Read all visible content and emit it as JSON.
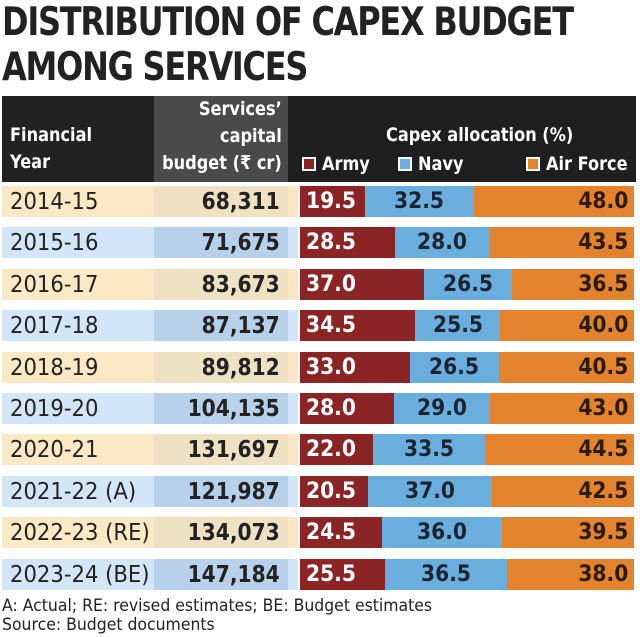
{
  "title_line1": "DISTRIBUTION OF CAPEX BUDGET",
  "title_line2": "AMONG SERVICES",
  "header": {
    "col_year_line1": "Financial",
    "col_year_line2": "Year",
    "col_budget_line1": "Services’",
    "col_budget_line2": "capital",
    "col_budget_line3": "budget (₹ cr)",
    "col_alloc": "Capex allocation (%)"
  },
  "legend": [
    {
      "name": "Army",
      "color": "#8b2424"
    },
    {
      "name": "Navy",
      "color": "#6aaedd"
    },
    {
      "name": "Air Force",
      "color": "#e4832e"
    }
  ],
  "chart_data": {
    "type": "bar",
    "stacked": true,
    "orientation": "horizontal",
    "title": "DISTRIBUTION OF CAPEX BUDGET AMONG SERVICES",
    "xlabel": "Capex allocation (%)",
    "ylabel": "Financial Year",
    "xlim": [
      0,
      100
    ],
    "legend_position": "top",
    "categories": [
      "2014-15",
      "2015-16",
      "2016-17",
      "2017-18",
      "2018-19",
      "2019-20",
      "2020-21",
      "2021-22 (A)",
      "2022-23 (RE)",
      "2023-24 (BE)"
    ],
    "capital_budget_label": "Services’ capital budget (₹ cr)",
    "capital_budget": [
      "68,311",
      "71,675",
      "83,673",
      "87,137",
      "89,812",
      "104,135",
      "131,697",
      "121,987",
      "134,073",
      "147,184"
    ],
    "series": [
      {
        "name": "Army",
        "color": "#8b2424",
        "values": [
          19.5,
          28.5,
          37.0,
          34.5,
          33.0,
          28.0,
          22.0,
          20.5,
          24.5,
          25.5
        ]
      },
      {
        "name": "Navy",
        "color": "#6aaedd",
        "values": [
          32.5,
          28.0,
          26.5,
          25.5,
          26.5,
          29.0,
          33.5,
          37.0,
          36.0,
          36.5
        ]
      },
      {
        "name": "Air Force",
        "color": "#e4832e",
        "values": [
          48.0,
          43.5,
          36.5,
          40.0,
          40.5,
          43.0,
          44.5,
          42.5,
          39.5,
          38.0
        ]
      }
    ]
  },
  "footnote_line1": "A: Actual; RE: revised estimates; BE: Budget estimates",
  "footnote_line2": "Source: Budget documents"
}
